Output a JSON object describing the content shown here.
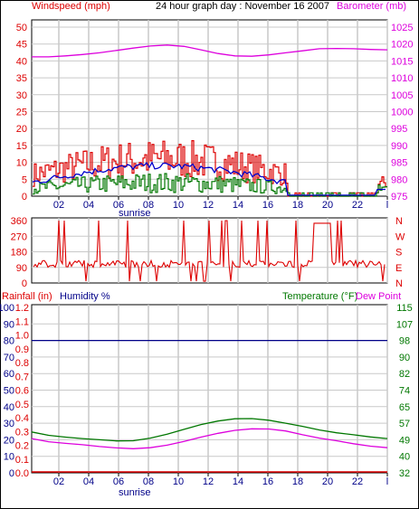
{
  "colors": {
    "wind": "#dd0000",
    "gust": "#dd0000",
    "avgwind": "#0000cc",
    "windgreen": "#007700",
    "baro": "#dd00dd",
    "dir": "#dd0000",
    "rain": "#dd0000",
    "humidity": "#000088",
    "temp": "#007700",
    "dew": "#dd00dd",
    "grid": "#c9c9c9",
    "axis": "#000000"
  },
  "labels": {
    "windspeed": "Windspeed (mph)",
    "title": "24 hour graph day : November 16 2007",
    "barometer": "Barometer (mb)",
    "rainfall": "Rainfall (in)",
    "humidity": "Humidity %",
    "temperature": "Temperature  (°F)",
    "dewpoint": "Dew Point",
    "sunrise": "sunrise"
  },
  "chart_data": [
    {
      "type": "line",
      "x_ticks": [
        "02",
        "04",
        "06",
        "08",
        "10",
        "12",
        "14",
        "16",
        "18",
        "20",
        "22",
        "l"
      ],
      "left_ticks": [
        "0",
        "5",
        "10",
        "15",
        "20",
        "25",
        "30",
        "35",
        "40",
        "45",
        "50"
      ],
      "right_ticks": [
        "975",
        "980",
        "985",
        "990",
        "995",
        "1000",
        "1005",
        "1010",
        "1015",
        "1020",
        "1025"
      ],
      "ylim": [
        0,
        50
      ],
      "ylim_right": [
        975,
        1025
      ],
      "series": [
        {
          "name": "Barometer (mb)",
          "values": [
            1016.2,
            1016.2,
            1016.5,
            1016.9,
            1017.4,
            1018.1,
            1018.8,
            1019.4,
            1019.7,
            1019.3,
            1018.3,
            1017.2,
            1016.5,
            1016.4,
            1016.8,
            1017.4,
            1018.0,
            1018.6,
            1018.7,
            1018.6,
            1018.4,
            1018.3
          ]
        }
      ]
    },
    {
      "type": "line",
      "left_ticks": [
        "360",
        "270",
        "180",
        "90",
        "0"
      ],
      "right_ticks": [
        "N",
        "W",
        "S",
        "E",
        "N"
      ],
      "ylim": [
        0,
        360
      ]
    },
    {
      "type": "line",
      "left_ticks": [
        "0",
        "10",
        "20",
        "30",
        "40",
        "50",
        "60",
        "70",
        "80",
        "90",
        "100"
      ],
      "rain_ticks": [
        "0.0",
        "0.1",
        "0.2",
        "0.3",
        "0.4",
        "0.5",
        "0.6",
        "0.7",
        "0.8",
        "0.9",
        "1.0",
        "1.1",
        "1.2"
      ],
      "right_ticks": [
        "32",
        "40",
        "49",
        "57",
        "65",
        "74",
        "82",
        "90",
        "98",
        "107",
        "115"
      ],
      "ylim": [
        0,
        100
      ],
      "ylim_right": [
        32,
        115
      ],
      "series": [
        {
          "name": "Humidity %",
          "values": [
            80,
            80,
            80,
            80,
            80,
            80,
            80,
            80,
            80,
            80,
            80,
            80,
            80,
            80,
            80,
            80,
            80,
            80,
            80,
            80,
            80,
            80,
            80,
            80,
            80
          ]
        },
        {
          "name": "Temperature  (°F)",
          "values": [
            52.5,
            50.8,
            49.9,
            49.2,
            48.6,
            48.0,
            48.1,
            49.4,
            51.4,
            53.8,
            56.2,
            58.0,
            59.1,
            59.2,
            58.4,
            56.9,
            55.3,
            53.5,
            52.1,
            51.1,
            50.0,
            49.2
          ]
        },
        {
          "name": "Dew Point",
          "values": [
            49.2,
            47.6,
            46.8,
            46.1,
            45.2,
            44.5,
            44.1,
            44.6,
            45.9,
            47.8,
            49.9,
            51.8,
            53.3,
            54.1,
            54.0,
            53.0,
            51.1,
            49.4,
            48.1,
            46.6,
            45.4,
            44.6
          ]
        },
        {
          "name": "Rainfall (in)",
          "values": [
            0,
            0,
            0,
            0,
            0,
            0,
            0,
            0,
            0,
            0,
            0,
            0,
            0
          ]
        }
      ]
    }
  ]
}
